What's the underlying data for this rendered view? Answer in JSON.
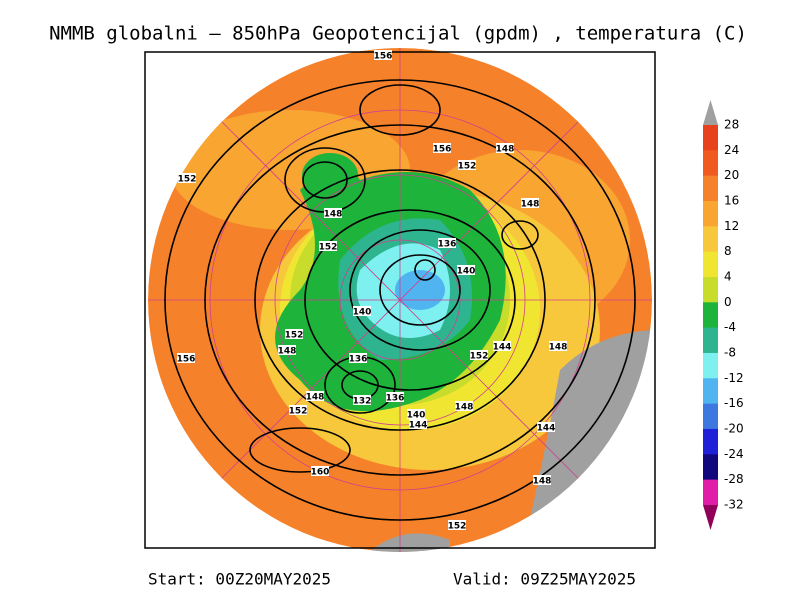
{
  "header": {
    "title": "NMMB globalni – 850hPa Geopotencijal (gpdm) , temperatura (C)"
  },
  "footer": {
    "start": "Start: 00Z20MAY2025",
    "valid": "Valid: 09Z25MAY2025"
  },
  "colorbar": {
    "labels": [
      "28",
      "24",
      "20",
      "16",
      "12",
      "8",
      "4",
      "0",
      "-4",
      "-8",
      "-12",
      "-16",
      "-20",
      "-24",
      "-28",
      "-32"
    ],
    "band_colors": [
      "#e8421c",
      "#f05a1e",
      "#f5822a",
      "#f8a532",
      "#f8c83c",
      "#f0e632",
      "#c8dc2c",
      "#1eb43c",
      "#2eb48e",
      "#7ef0f0",
      "#50b4f0",
      "#3c78e0",
      "#2020d8",
      "#12087e",
      "#e01ca8"
    ],
    "top_color": "#a0a0a0",
    "bottom_color": "#900058"
  },
  "contour_labels": [
    "156",
    "156",
    "152",
    "148",
    "152",
    "148",
    "148",
    "152",
    "136",
    "140",
    "140",
    "152",
    "148",
    "156",
    "136",
    "152",
    "144",
    "148",
    "148",
    "132",
    "136",
    "152",
    "140",
    "144",
    "148",
    "144",
    "160",
    "148",
    "152"
  ]
}
